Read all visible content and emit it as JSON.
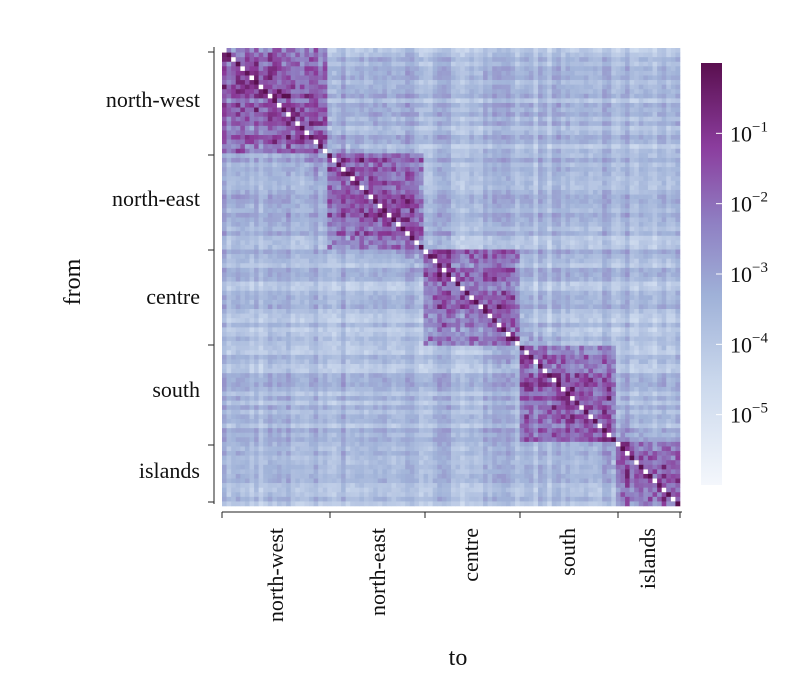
{
  "chart_data": {
    "type": "heatmap",
    "title": "",
    "xlabel": "to",
    "ylabel": "from",
    "x_categories": [
      "north-west",
      "north-east",
      "centre",
      "south",
      "islands"
    ],
    "y_categories": [
      "north-west",
      "north-east",
      "centre",
      "south",
      "islands"
    ],
    "colorscale": {
      "type": "log",
      "range": [
        1e-06,
        1
      ],
      "ticks": [
        {
          "value": 0.1,
          "label": "10",
          "exp": "−1"
        },
        {
          "value": 0.01,
          "label": "10",
          "exp": "−2"
        },
        {
          "value": 0.001,
          "label": "10",
          "exp": "−3"
        },
        {
          "value": 0.0001,
          "label": "10",
          "exp": "−4"
        },
        {
          "value": 1e-05,
          "label": "10",
          "exp": "−5"
        }
      ],
      "colors": [
        "#eef3fa",
        "#c7d6ea",
        "#9db0d6",
        "#8c78bf",
        "#8b3a98",
        "#5a0f4f"
      ]
    },
    "grid": false,
    "legend_placement": "right",
    "description_of_data": "matrix of flow fractions between regions; dense block-diagonal structure, highest values on the diagonal"
  }
}
